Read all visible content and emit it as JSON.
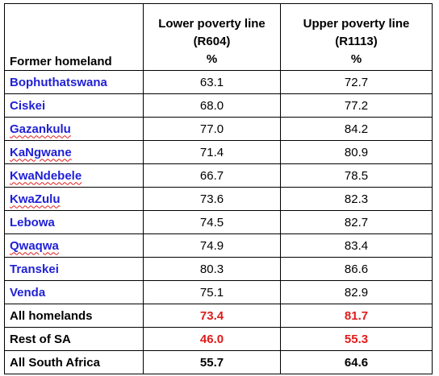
{
  "table": {
    "headers": {
      "col1": "Former homeland",
      "col2_line1": "Lower poverty line",
      "col2_line2": "(R604)",
      "col2_line3": "%",
      "col3_line1": "Upper poverty line",
      "col3_line2": "(R1113)",
      "col3_line3": "%"
    },
    "rows": [
      {
        "name": "Bophuthatswana",
        "lower": "63.1",
        "upper": "72.7"
      },
      {
        "name": "Ciskei",
        "lower": "68.0",
        "upper": "77.2"
      },
      {
        "name": "Gazankulu",
        "lower": "77.0",
        "upper": "84.2"
      },
      {
        "name": "KaNgwane",
        "lower": "71.4",
        "upper": "80.9"
      },
      {
        "name": "KwaNdebele",
        "lower": "66.7",
        "upper": "78.5"
      },
      {
        "name": "KwaZulu",
        "lower": "73.6",
        "upper": "82.3"
      },
      {
        "name": "Lebowa",
        "lower": "74.5",
        "upper": "82.7"
      },
      {
        "name": "Qwaqwa",
        "lower": "74.9",
        "upper": "83.4"
      },
      {
        "name": "Transkei",
        "lower": "80.3",
        "upper": "86.6"
      },
      {
        "name": "Venda",
        "lower": "75.1",
        "upper": "82.9"
      }
    ],
    "summary": [
      {
        "name": "All homelands",
        "lower": "73.4",
        "upper": "81.7"
      },
      {
        "name": "Rest of SA",
        "lower": "46.0",
        "upper": "55.3"
      },
      {
        "name": "All South Africa",
        "lower": "55.7",
        "upper": "64.6"
      }
    ]
  },
  "colors": {
    "homeland_name": "#1f1fd6",
    "highlight_value": "#e01b1b",
    "text": "#000000",
    "border": "#000000"
  }
}
